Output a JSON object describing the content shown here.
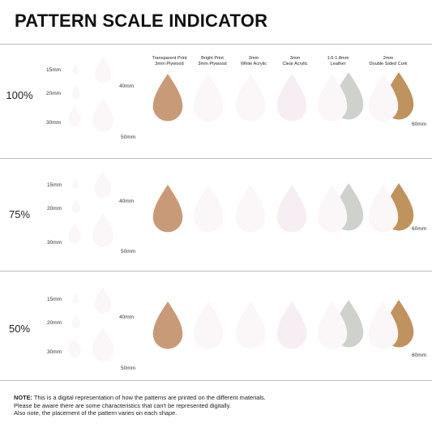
{
  "title": "PATTERN SCALE INDICATOR",
  "columns": [
    {
      "line1": "Transparent Print",
      "line2": "3mm Plywood"
    },
    {
      "line1": "Bright Print",
      "line2": "3mm Plywood"
    },
    {
      "line1": "3mm",
      "line2": "White Acrylic"
    },
    {
      "line1": "3mm",
      "line2": "Clear Acrylic"
    },
    {
      "line1": "1.6-1.8mm",
      "line2": "Leather"
    },
    {
      "line1": "2mm",
      "line2": "Double Sided Cork"
    }
  ],
  "rows": [
    {
      "scale": "100%"
    },
    {
      "scale": "75%"
    },
    {
      "scale": "50%"
    }
  ],
  "sizes": {
    "s15": "15mm",
    "s20": "20mm",
    "s30": "30mm",
    "s40": "40mm",
    "s50": "50mm",
    "s60": "60mm"
  },
  "note": {
    "label": "NOTE:",
    "line1": " This is a digital representation of how the patterns are printed on the different materials.",
    "line2": "Please be aware there are some characteristics that can't be represented digitally.",
    "line3": "Also note, the placement of the pattern varies on each shape."
  },
  "colors": {
    "magenta": "#9b1d5c",
    "pink": "#d86a9c",
    "plywood": "#c89a78",
    "leather": "#cfd2cc",
    "cork": "#c0925e"
  }
}
